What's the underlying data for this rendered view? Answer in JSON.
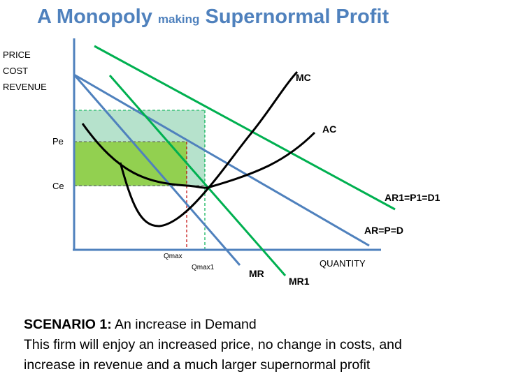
{
  "title": {
    "part1": "A Monopoly",
    "part2": "making",
    "part3": "Supernormal Profit"
  },
  "axes": {
    "y_label": [
      "PRICE",
      "COST",
      "REVENUE"
    ],
    "x_label": "QUANTITY"
  },
  "levels": {
    "pe": "Pe",
    "ce": "Ce",
    "qmax": "Qmax",
    "qmax1": "Qmax1"
  },
  "curves": {
    "mc": "MC",
    "ac": "AC",
    "ar1": "AR1=P1=D1",
    "ar": "AR=P=D",
    "mr": "MR",
    "mr1": "MR1"
  },
  "colors": {
    "title": "#4f81bd",
    "blue_line": "#4f81bd",
    "green_line": "#00b050",
    "old_profit": "#92d050",
    "new_profit": "#8fd3b0",
    "mc_ac": "#000000",
    "qmax_line": "#c00000"
  },
  "caption": {
    "heading": "SCENARIO 1:",
    "heading_rest": "An increase in Demand",
    "line2": "This firm will enjoy an increased price, no change in costs, and",
    "line3": "increase in revenue and a much larger supernormal profit"
  }
}
